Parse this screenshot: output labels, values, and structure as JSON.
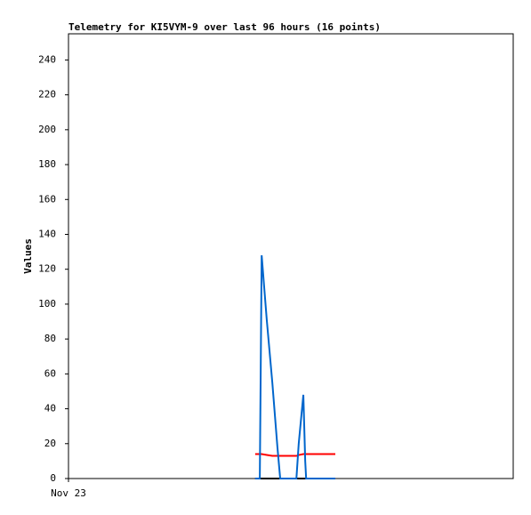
{
  "chart_data": {
    "type": "line",
    "title": "Telemetry for KI5VYM-9 over last 96 hours (16 points)",
    "y_label": "Values",
    "x": [
      40.3,
      41.3,
      41.5,
      41.7,
      42.8,
      44.0,
      45.1,
      45.7,
      46.7,
      47.8,
      49.2,
      49.7,
      50.7,
      51.1,
      51.3,
      57.6
    ],
    "xlim": [
      0,
      96
    ],
    "xticks": [
      {
        "value": 0,
        "label": "Nov 23"
      }
    ],
    "ylim": [
      0,
      255
    ],
    "yticks": [
      0,
      20,
      40,
      60,
      80,
      100,
      120,
      140,
      160,
      180,
      200,
      220,
      240
    ],
    "series": [
      {
        "color": "#000000",
        "values": [
          0,
          0,
          0,
          0,
          0,
          0,
          0,
          0,
          0,
          0,
          0,
          0,
          0,
          0,
          0,
          0
        ]
      },
      {
        "color": "#ff0000",
        "values": [
          14,
          14,
          14,
          14,
          13.5,
          13,
          13,
          13,
          13,
          13,
          13,
          13.5,
          14,
          14,
          14,
          14
        ]
      },
      {
        "color": "#0066cc",
        "values": [
          0,
          0,
          64,
          128,
          91,
          55,
          18,
          0,
          0,
          0,
          0,
          20,
          48,
          10,
          0,
          0
        ]
      }
    ]
  }
}
